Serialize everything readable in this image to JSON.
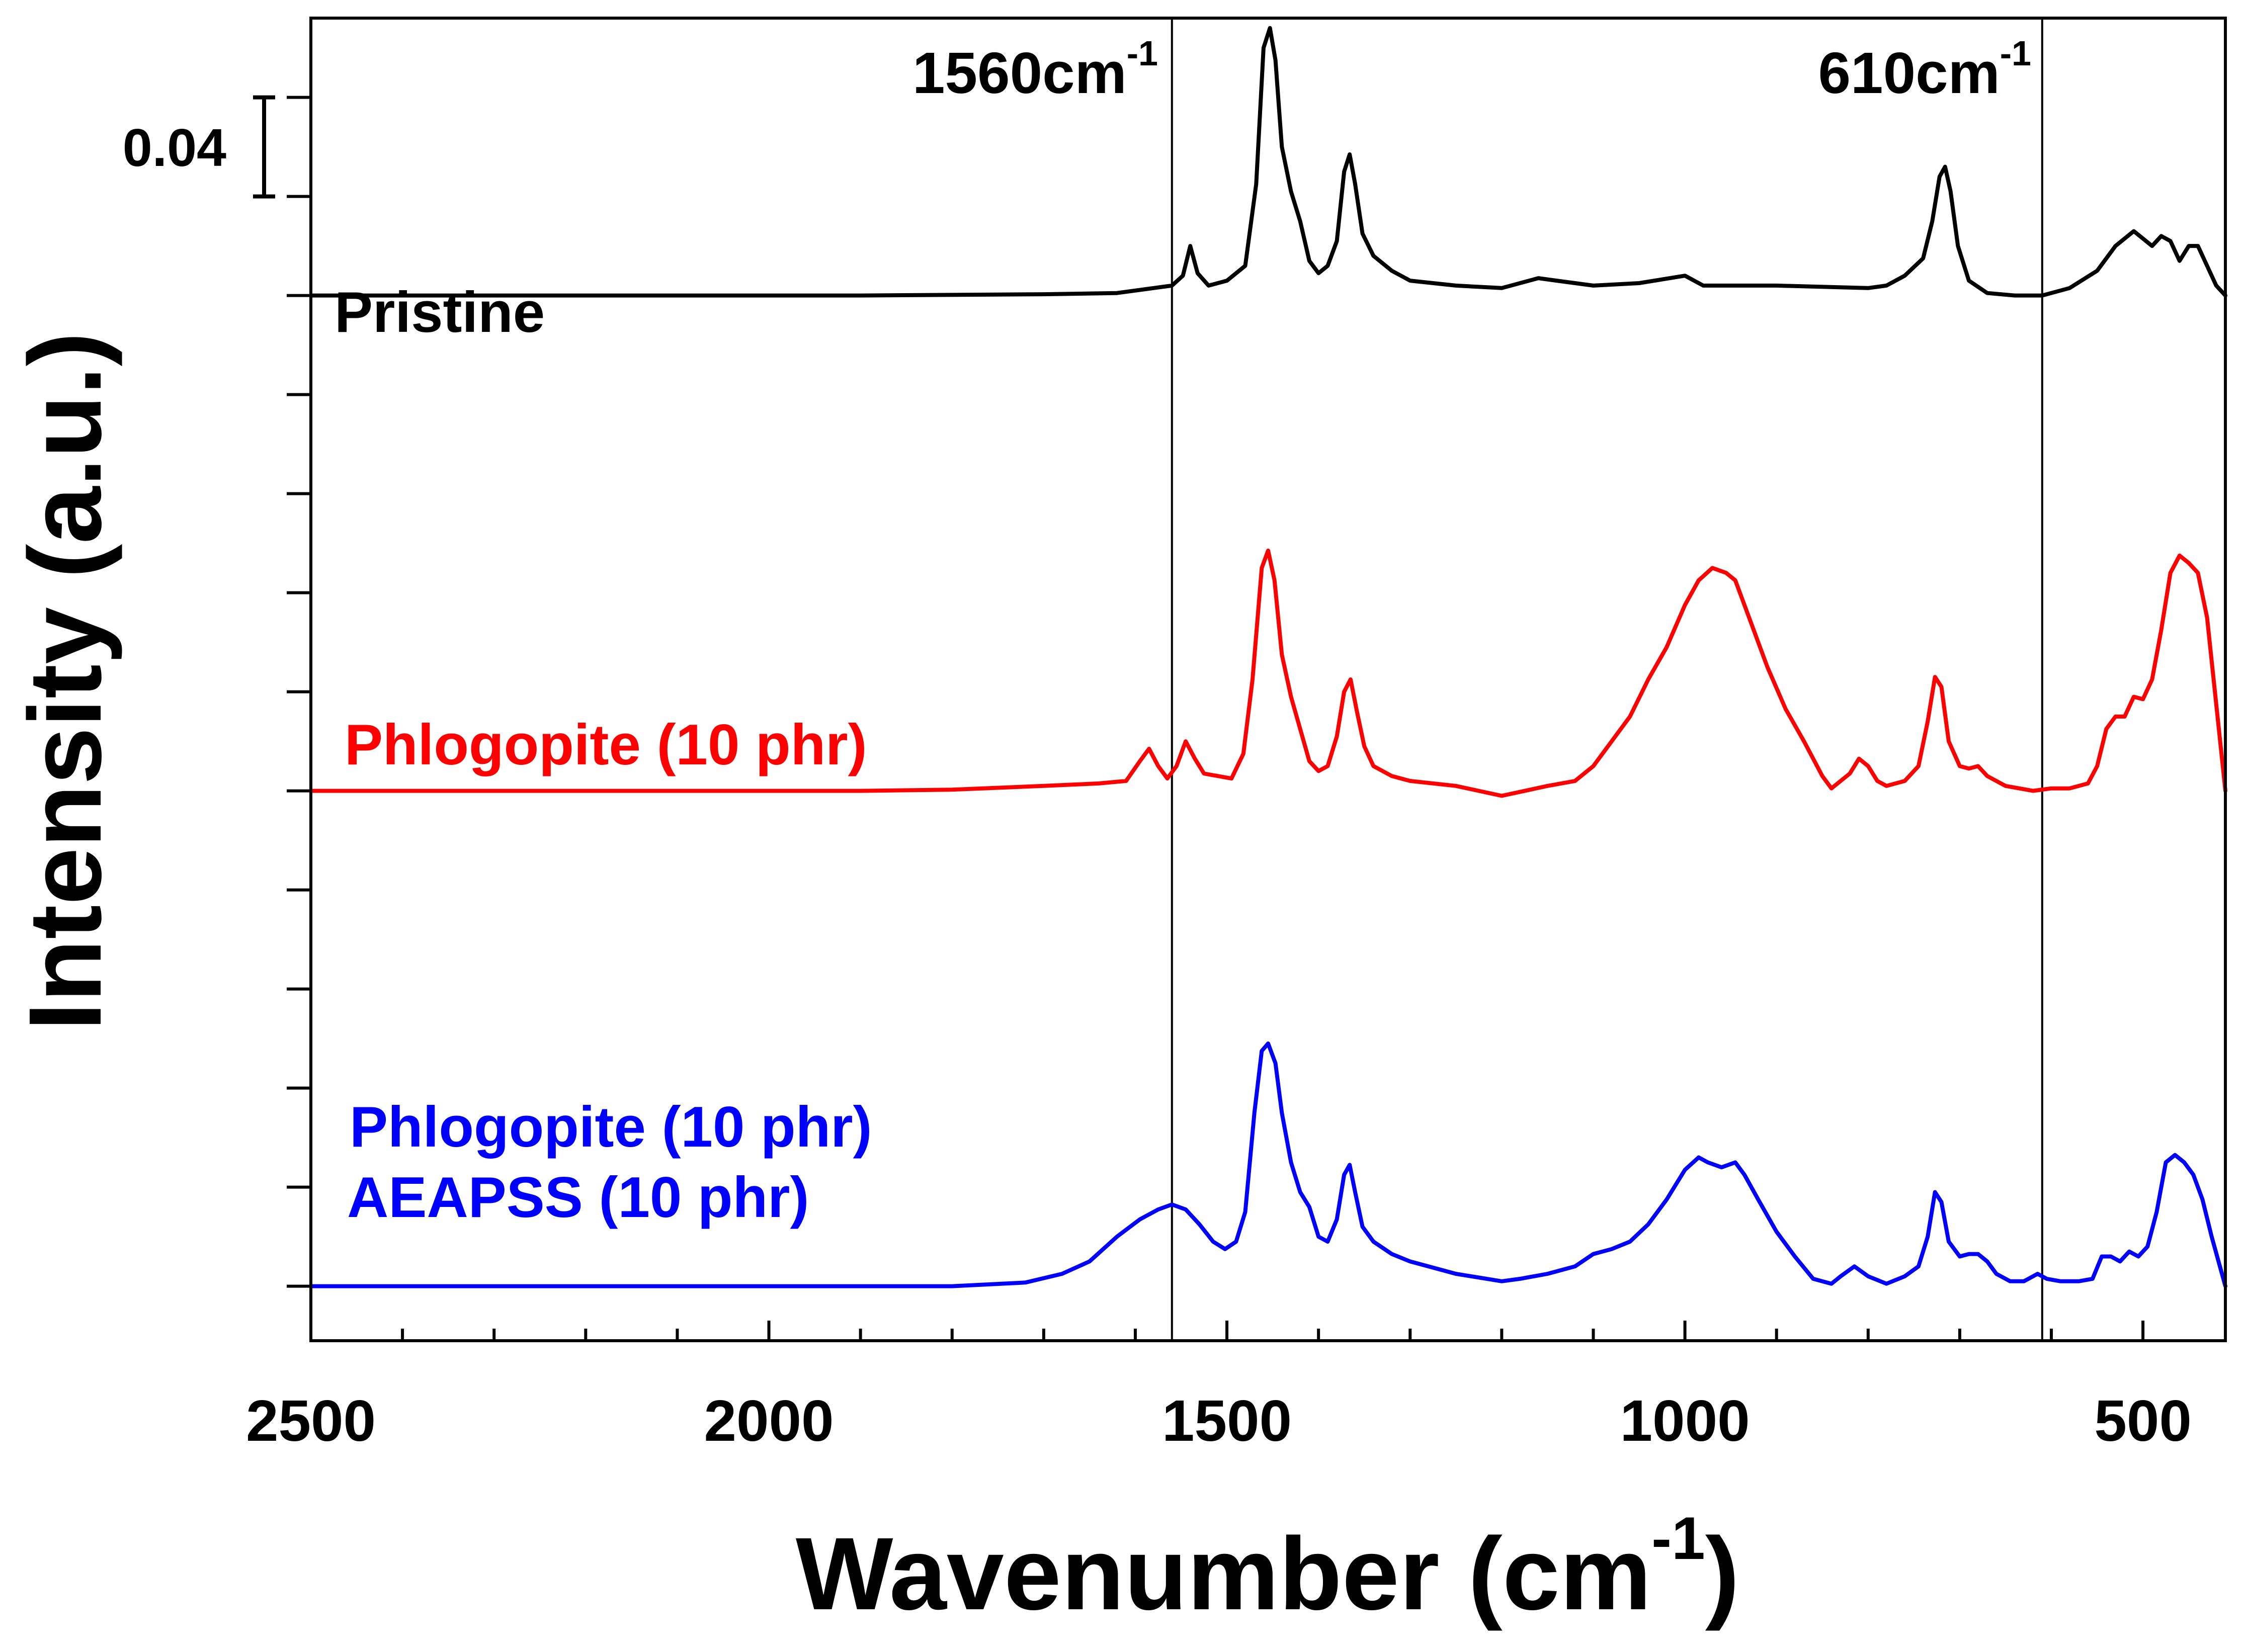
{
  "chart_data": {
    "type": "line",
    "xlabel": "Wavenumber (cm",
    "xlabel_sup": "-1",
    "xlabel_close": ")",
    "ylabel": "Intensity (a.u.)",
    "xlim": [
      2500,
      410
    ],
    "x_reversed": true,
    "x_ticks": [
      2500,
      2000,
      1500,
      1000,
      500
    ],
    "x_tick_labels": [
      "2500",
      "2000",
      "1500",
      "1000",
      "500"
    ],
    "x_minor_step": 100,
    "y_units": "absorbance offset (scale bar units)",
    "ylim": [
      -0.222,
      0.312
    ],
    "y_ticks": [
      -0.2,
      -0.16,
      -0.12,
      -0.08,
      -0.04,
      0,
      0.04,
      0.08,
      0.12,
      0.16,
      0.2,
      0.24,
      0.28
    ],
    "scale_bar": {
      "label": "0.04",
      "value": 0.04,
      "from": 0.24,
      "to": 0.28
    },
    "reference_lines": [
      {
        "x": 1560,
        "label": "1560cm",
        "label_sup": "-1"
      },
      {
        "x": 610,
        "label": "610cm",
        "label_sup": "-1"
      }
    ],
    "series": [
      {
        "name": "Pristine",
        "label_lines": [
          "Pristine"
        ],
        "color": "#000000",
        "offset": 0.2,
        "points": [
          [
            2500,
            0
          ],
          [
            2300,
            0
          ],
          [
            2100,
            0
          ],
          [
            1900,
            0
          ],
          [
            1700,
            0.0005
          ],
          [
            1620,
            0.001
          ],
          [
            1580,
            0.003
          ],
          [
            1560,
            0.004
          ],
          [
            1548,
            0.008
          ],
          [
            1540,
            0.02
          ],
          [
            1532,
            0.009
          ],
          [
            1520,
            0.004
          ],
          [
            1500,
            0.006
          ],
          [
            1480,
            0.012
          ],
          [
            1468,
            0.045
          ],
          [
            1460,
            0.1
          ],
          [
            1453,
            0.108
          ],
          [
            1447,
            0.095
          ],
          [
            1440,
            0.06
          ],
          [
            1430,
            0.042
          ],
          [
            1420,
            0.03
          ],
          [
            1410,
            0.014
          ],
          [
            1400,
            0.009
          ],
          [
            1390,
            0.012
          ],
          [
            1380,
            0.022
          ],
          [
            1372,
            0.05
          ],
          [
            1366,
            0.057
          ],
          [
            1360,
            0.045
          ],
          [
            1352,
            0.025
          ],
          [
            1340,
            0.016
          ],
          [
            1320,
            0.01
          ],
          [
            1300,
            0.006
          ],
          [
            1250,
            0.004
          ],
          [
            1200,
            0.003
          ],
          [
            1160,
            0.007
          ],
          [
            1140,
            0.006
          ],
          [
            1100,
            0.004
          ],
          [
            1050,
            0.005
          ],
          [
            1000,
            0.008
          ],
          [
            980,
            0.004
          ],
          [
            900,
            0.004
          ],
          [
            800,
            0.003
          ],
          [
            780,
            0.004
          ],
          [
            760,
            0.008
          ],
          [
            740,
            0.015
          ],
          [
            730,
            0.03
          ],
          [
            722,
            0.048
          ],
          [
            716,
            0.052
          ],
          [
            710,
            0.042
          ],
          [
            702,
            0.02
          ],
          [
            690,
            0.006
          ],
          [
            670,
            0.001
          ],
          [
            640,
            0
          ],
          [
            610,
            0
          ],
          [
            580,
            0.003
          ],
          [
            550,
            0.01
          ],
          [
            530,
            0.02
          ],
          [
            510,
            0.026
          ],
          [
            490,
            0.02
          ],
          [
            480,
            0.024
          ],
          [
            470,
            0.022
          ],
          [
            460,
            0.014
          ],
          [
            450,
            0.02
          ],
          [
            440,
            0.02
          ],
          [
            430,
            0.012
          ],
          [
            420,
            0.004
          ],
          [
            410,
            0
          ]
        ]
      },
      {
        "name": "Phlogopite (10 phr)",
        "label_lines": [
          "Phlogopite (10 phr)"
        ],
        "color": "#ff0000",
        "offset": 0,
        "points": [
          [
            2500,
            0
          ],
          [
            2300,
            0
          ],
          [
            2100,
            0
          ],
          [
            1900,
            0
          ],
          [
            1800,
            0.0005
          ],
          [
            1700,
            0.002
          ],
          [
            1640,
            0.003
          ],
          [
            1610,
            0.004
          ],
          [
            1595,
            0.012
          ],
          [
            1585,
            0.017
          ],
          [
            1575,
            0.01
          ],
          [
            1565,
            0.005
          ],
          [
            1555,
            0.01
          ],
          [
            1545,
            0.02
          ],
          [
            1535,
            0.013
          ],
          [
            1525,
            0.007
          ],
          [
            1510,
            0.006
          ],
          [
            1495,
            0.005
          ],
          [
            1482,
            0.015
          ],
          [
            1472,
            0.045
          ],
          [
            1462,
            0.09
          ],
          [
            1455,
            0.097
          ],
          [
            1448,
            0.085
          ],
          [
            1440,
            0.055
          ],
          [
            1430,
            0.038
          ],
          [
            1420,
            0.025
          ],
          [
            1410,
            0.012
          ],
          [
            1400,
            0.008
          ],
          [
            1390,
            0.01
          ],
          [
            1380,
            0.022
          ],
          [
            1372,
            0.04
          ],
          [
            1365,
            0.045
          ],
          [
            1358,
            0.032
          ],
          [
            1350,
            0.018
          ],
          [
            1340,
            0.01
          ],
          [
            1320,
            0.006
          ],
          [
            1300,
            0.004
          ],
          [
            1250,
            0.002
          ],
          [
            1200,
            -0.002
          ],
          [
            1150,
            0.002
          ],
          [
            1120,
            0.004
          ],
          [
            1100,
            0.01
          ],
          [
            1080,
            0.02
          ],
          [
            1060,
            0.03
          ],
          [
            1040,
            0.045
          ],
          [
            1020,
            0.058
          ],
          [
            1000,
            0.075
          ],
          [
            985,
            0.085
          ],
          [
            970,
            0.09
          ],
          [
            955,
            0.088
          ],
          [
            945,
            0.085
          ],
          [
            930,
            0.07
          ],
          [
            910,
            0.05
          ],
          [
            890,
            0.033
          ],
          [
            870,
            0.02
          ],
          [
            850,
            0.006
          ],
          [
            840,
            0.001
          ],
          [
            820,
            0.007
          ],
          [
            810,
            0.013
          ],
          [
            800,
            0.01
          ],
          [
            790,
            0.004
          ],
          [
            780,
            0.002
          ],
          [
            760,
            0.004
          ],
          [
            745,
            0.01
          ],
          [
            735,
            0.028
          ],
          [
            727,
            0.046
          ],
          [
            720,
            0.042
          ],
          [
            712,
            0.02
          ],
          [
            700,
            0.01
          ],
          [
            690,
            0.009
          ],
          [
            680,
            0.01
          ],
          [
            670,
            0.006
          ],
          [
            650,
            0.002
          ],
          [
            620,
            0
          ],
          [
            600,
            0.001
          ],
          [
            580,
            0.001
          ],
          [
            560,
            0.003
          ],
          [
            550,
            0.01
          ],
          [
            540,
            0.025
          ],
          [
            530,
            0.03
          ],
          [
            520,
            0.03
          ],
          [
            510,
            0.038
          ],
          [
            500,
            0.037
          ],
          [
            490,
            0.045
          ],
          [
            480,
            0.065
          ],
          [
            470,
            0.088
          ],
          [
            460,
            0.095
          ],
          [
            450,
            0.092
          ],
          [
            440,
            0.088
          ],
          [
            430,
            0.07
          ],
          [
            420,
            0.035
          ],
          [
            410,
            0
          ]
        ]
      },
      {
        "name": "Phlogopite (10 phr) AEAPSS (10 phr)",
        "label_lines": [
          "Phlogopite (10 phr)",
          "AEAPSS (10 phr)"
        ],
        "color": "#0000ff",
        "offset": -0.2,
        "points": [
          [
            2500,
            0
          ],
          [
            2300,
            0
          ],
          [
            2100,
            0
          ],
          [
            1900,
            0
          ],
          [
            1800,
            0
          ],
          [
            1720,
            0.0015
          ],
          [
            1680,
            0.005
          ],
          [
            1650,
            0.01
          ],
          [
            1620,
            0.02
          ],
          [
            1595,
            0.027
          ],
          [
            1575,
            0.031
          ],
          [
            1560,
            0.033
          ],
          [
            1545,
            0.031
          ],
          [
            1530,
            0.025
          ],
          [
            1515,
            0.018
          ],
          [
            1502,
            0.015
          ],
          [
            1490,
            0.018
          ],
          [
            1480,
            0.03
          ],
          [
            1470,
            0.07
          ],
          [
            1462,
            0.095
          ],
          [
            1455,
            0.098
          ],
          [
            1447,
            0.09
          ],
          [
            1440,
            0.07
          ],
          [
            1430,
            0.05
          ],
          [
            1420,
            0.038
          ],
          [
            1410,
            0.032
          ],
          [
            1400,
            0.02
          ],
          [
            1390,
            0.018
          ],
          [
            1380,
            0.027
          ],
          [
            1372,
            0.045
          ],
          [
            1366,
            0.049
          ],
          [
            1360,
            0.038
          ],
          [
            1352,
            0.024
          ],
          [
            1340,
            0.018
          ],
          [
            1320,
            0.013
          ],
          [
            1300,
            0.01
          ],
          [
            1250,
            0.005
          ],
          [
            1200,
            0.002
          ],
          [
            1180,
            0.003
          ],
          [
            1150,
            0.005
          ],
          [
            1120,
            0.008
          ],
          [
            1100,
            0.013
          ],
          [
            1080,
            0.015
          ],
          [
            1060,
            0.018
          ],
          [
            1040,
            0.025
          ],
          [
            1020,
            0.035
          ],
          [
            1000,
            0.047
          ],
          [
            985,
            0.052
          ],
          [
            975,
            0.05
          ],
          [
            960,
            0.048
          ],
          [
            945,
            0.05
          ],
          [
            935,
            0.045
          ],
          [
            920,
            0.035
          ],
          [
            900,
            0.022
          ],
          [
            880,
            0.012
          ],
          [
            860,
            0.003
          ],
          [
            840,
            0.001
          ],
          [
            830,
            0.004
          ],
          [
            815,
            0.008
          ],
          [
            800,
            0.004
          ],
          [
            780,
            0.001
          ],
          [
            760,
            0.004
          ],
          [
            745,
            0.008
          ],
          [
            735,
            0.02
          ],
          [
            727,
            0.038
          ],
          [
            720,
            0.034
          ],
          [
            712,
            0.018
          ],
          [
            700,
            0.012
          ],
          [
            690,
            0.013
          ],
          [
            680,
            0.013
          ],
          [
            670,
            0.01
          ],
          [
            660,
            0.005
          ],
          [
            645,
            0.002
          ],
          [
            630,
            0.002
          ],
          [
            615,
            0.005
          ],
          [
            605,
            0.003
          ],
          [
            590,
            0.002
          ],
          [
            570,
            0.002
          ],
          [
            555,
            0.003
          ],
          [
            545,
            0.012
          ],
          [
            535,
            0.012
          ],
          [
            525,
            0.01
          ],
          [
            515,
            0.014
          ],
          [
            505,
            0.012
          ],
          [
            495,
            0.016
          ],
          [
            485,
            0.03
          ],
          [
            475,
            0.05
          ],
          [
            465,
            0.053
          ],
          [
            455,
            0.05
          ],
          [
            445,
            0.045
          ],
          [
            435,
            0.035
          ],
          [
            425,
            0.02
          ],
          [
            410,
            0
          ]
        ]
      }
    ]
  }
}
